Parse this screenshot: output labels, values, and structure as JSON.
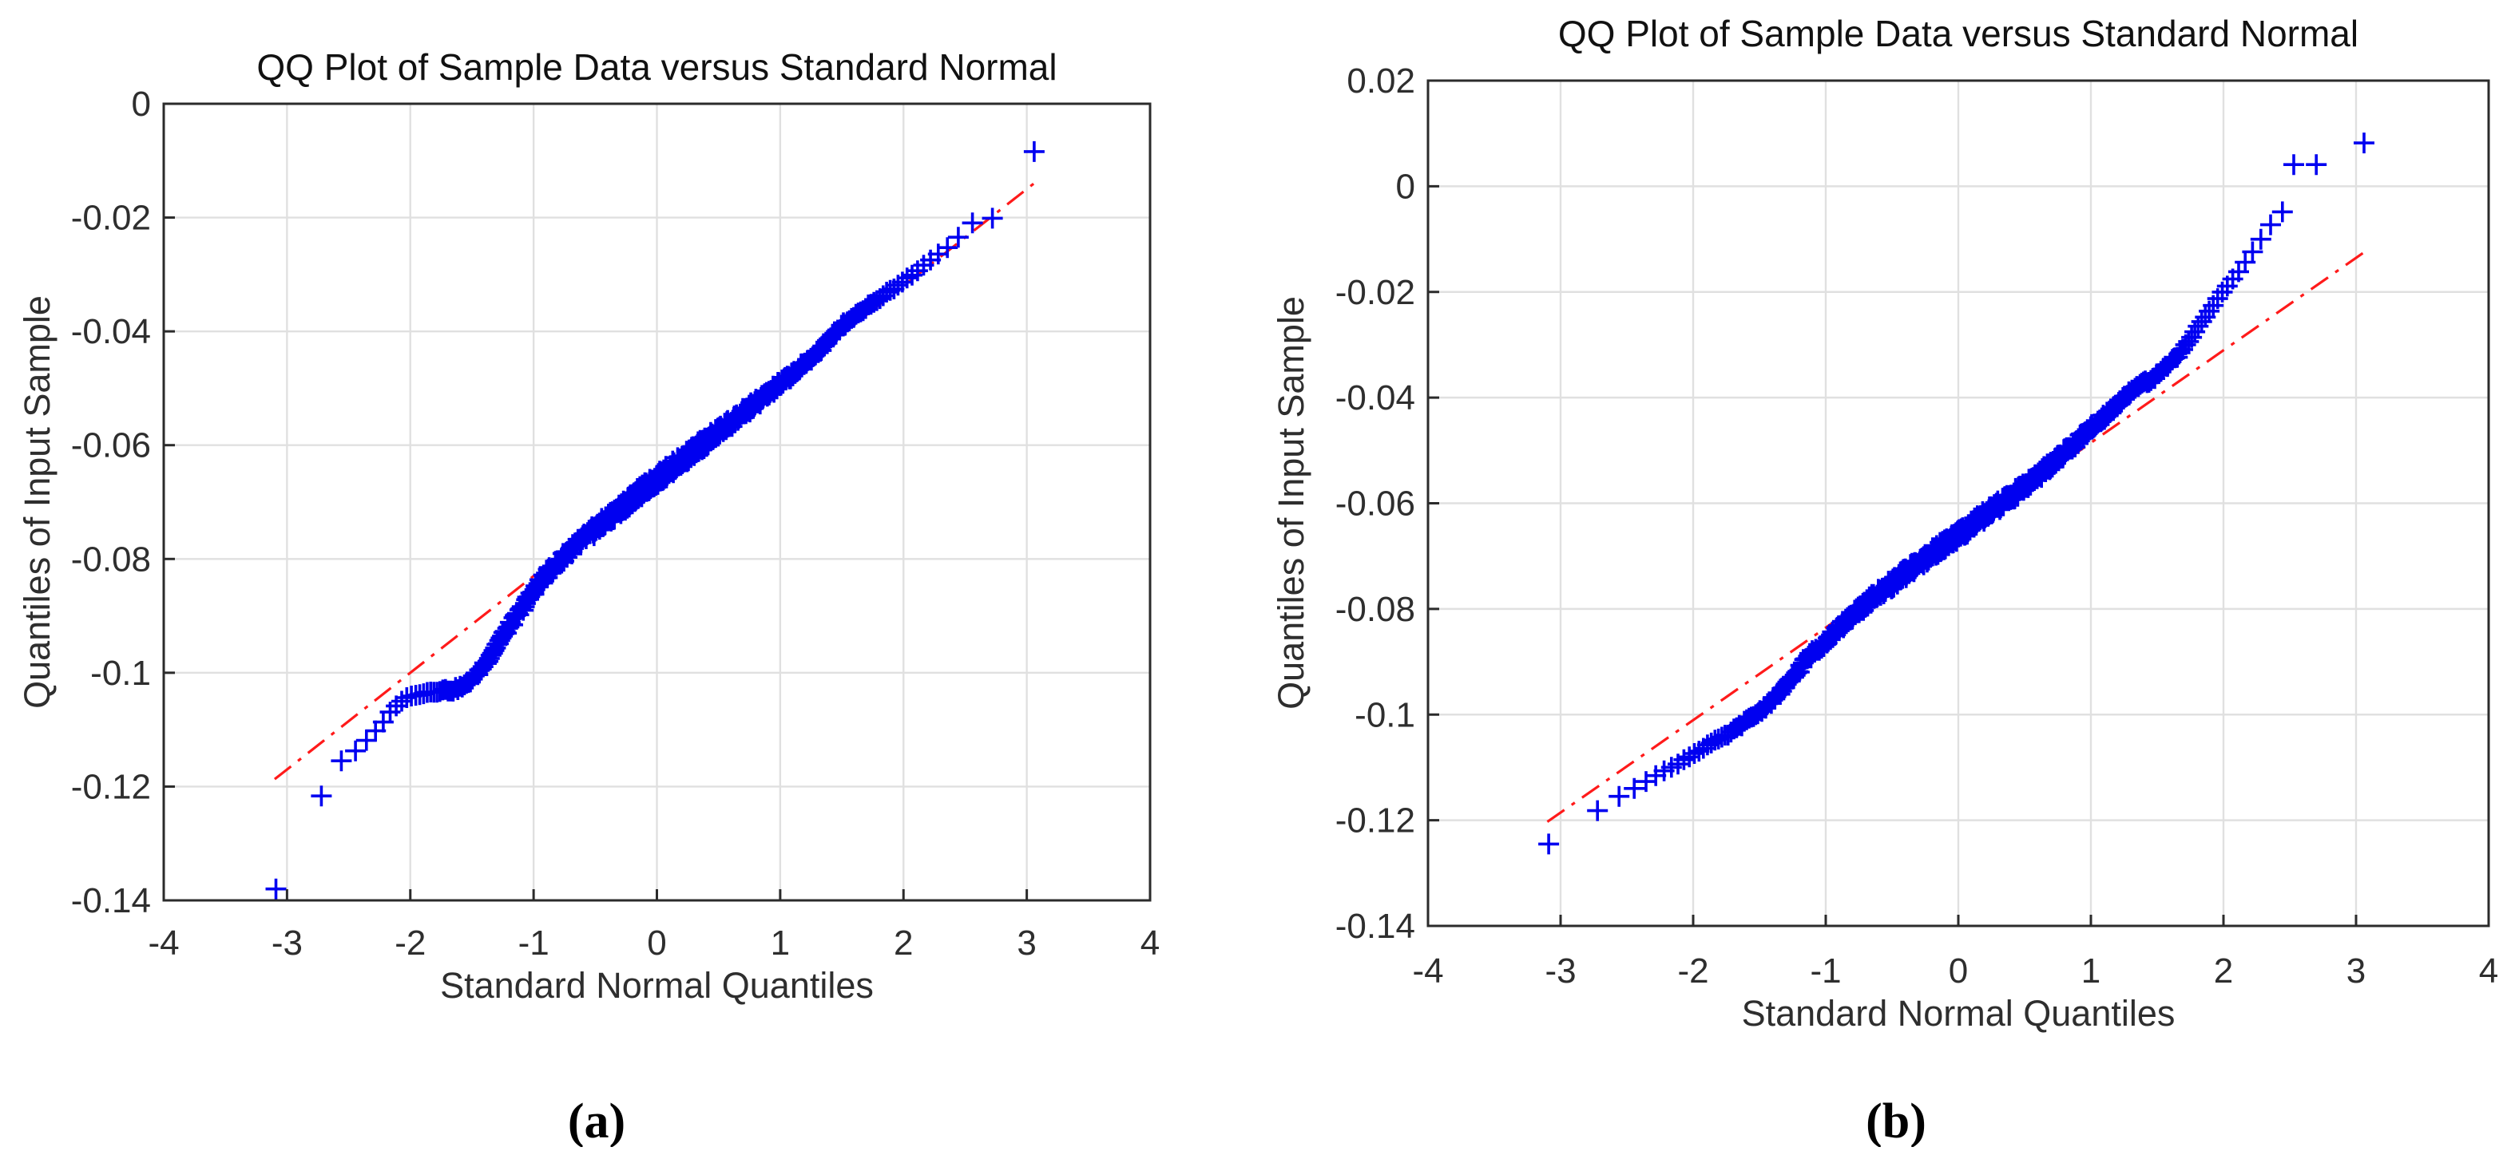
{
  "figure": {
    "panel_labels": [
      "(a)",
      "(b)"
    ],
    "background": "#ffffff",
    "colors": {
      "marker": "#0000f0",
      "ref_line": "#ff1a1a",
      "grid": "#e0e0e0",
      "axis": "#2b2b2b",
      "tick_text": "#2e2e2e",
      "title_text": "#111111"
    }
  },
  "chart_data": [
    {
      "type": "scatter",
      "panel": "a",
      "title": "QQ Plot of Sample Data versus Standard Normal",
      "xlabel": "Standard Normal Quantiles",
      "ylabel": "Quantiles of Input Sample",
      "xlim": [
        -4,
        4
      ],
      "ylim": [
        -0.14,
        0
      ],
      "x_ticks": {
        "values": [
          -4,
          -3,
          -2,
          -1,
          0,
          1,
          2,
          3,
          4
        ],
        "labels": [
          "-4",
          "-3",
          "-2",
          "-1",
          "0",
          "1",
          "2",
          "3",
          "4"
        ]
      },
      "y_ticks": {
        "values": [
          0,
          -0.02,
          -0.04,
          -0.06,
          -0.08,
          -0.1,
          -0.12,
          -0.14
        ],
        "labels": [
          "0",
          "-0.02",
          "-0.04",
          "-0.06",
          "-0.08",
          "-0.1",
          "-0.12",
          "-0.14"
        ]
      },
      "grid": true,
      "legend": false,
      "series": [
        {
          "name": "sample-quantiles",
          "type": "qq-points",
          "marker": "plus",
          "color": "#0000f0",
          "n_points": 500,
          "skip_low": 1,
          "skip_high": 1,
          "band_halfwidth": 0.0011,
          "seed": 3,
          "quantile_curve": [
            [
              -2.74,
              -0.1225
            ],
            [
              -2.6,
              -0.116
            ],
            [
              -2.5,
              -0.1148
            ],
            [
              -2.38,
              -0.1125
            ],
            [
              -2.25,
              -0.1095
            ],
            [
              -2.13,
              -0.106
            ],
            [
              -2.05,
              -0.1046
            ],
            [
              -1.95,
              -0.1038
            ],
            [
              -1.85,
              -0.1034
            ],
            [
              -1.75,
              -0.1031
            ],
            [
              -1.65,
              -0.103
            ],
            [
              -1.55,
              -0.1022
            ],
            [
              -1.45,
              -0.1
            ],
            [
              -1.35,
              -0.097
            ],
            [
              -1.28,
              -0.0945
            ],
            [
              -1.2,
              -0.092
            ],
            [
              -1.1,
              -0.089
            ],
            [
              -1.0,
              -0.0856
            ],
            [
              -0.9,
              -0.0829
            ],
            [
              -0.8,
              -0.0805
            ],
            [
              -0.7,
              -0.0785
            ],
            [
              -0.6,
              -0.0766
            ],
            [
              -0.5,
              -0.0748
            ],
            [
              -0.4,
              -0.073
            ],
            [
              -0.3,
              -0.0712
            ],
            [
              -0.2,
              -0.0694
            ],
            [
              -0.1,
              -0.0677
            ],
            [
              0.0,
              -0.066
            ],
            [
              0.15,
              -0.0635
            ],
            [
              0.3,
              -0.061
            ],
            [
              0.45,
              -0.0585
            ],
            [
              0.6,
              -0.056
            ],
            [
              0.75,
              -0.0535
            ],
            [
              0.9,
              -0.051
            ],
            [
              1.05,
              -0.0484
            ],
            [
              1.2,
              -0.0457
            ],
            [
              1.35,
              -0.0427
            ],
            [
              1.5,
              -0.039
            ],
            [
              1.65,
              -0.0365
            ],
            [
              1.8,
              -0.0342
            ],
            [
              1.95,
              -0.032
            ],
            [
              2.1,
              -0.0295
            ],
            [
              2.25,
              -0.0269
            ],
            [
              2.4,
              -0.0245
            ],
            [
              2.55,
              -0.021
            ],
            [
              2.74,
              -0.02
            ]
          ],
          "outliers_low": [
            [
              -3.09,
              -0.138
            ]
          ],
          "outliers_high": [
            [
              3.06,
              -0.0084
            ]
          ]
        },
        {
          "name": "reference-line",
          "type": "line",
          "style": "dash-dot",
          "color": "#ff1a1a",
          "points": [
            [
              -3.1,
              -0.1187
            ],
            [
              3.07,
              -0.0138
            ]
          ]
        }
      ]
    },
    {
      "type": "scatter",
      "panel": "b",
      "title": "QQ Plot of Sample Data versus Standard Normal",
      "xlabel": "Standard Normal Quantiles",
      "ylabel": "Quantiles of Input Sample",
      "xlim": [
        -4,
        4
      ],
      "ylim": [
        -0.14,
        0.02
      ],
      "x_ticks": {
        "values": [
          -4,
          -3,
          -2,
          -1,
          0,
          1,
          2,
          3,
          4
        ],
        "labels": [
          "-4",
          "-3",
          "-2",
          "-1",
          "0",
          "1",
          "2",
          "3",
          "4"
        ]
      },
      "y_ticks": {
        "values": [
          0.02,
          0,
          -0.02,
          -0.04,
          -0.06,
          -0.08,
          -0.1,
          -0.12,
          -0.14
        ],
        "labels": [
          "0.02",
          "0",
          "-0.02",
          "-0.04",
          "-0.06",
          "-0.08",
          "-0.1",
          "-0.12",
          "-0.14"
        ]
      },
      "grid": true,
      "legend": false,
      "series": [
        {
          "name": "sample-quantiles",
          "type": "qq-points",
          "marker": "plus",
          "color": "#0000f0",
          "n_points": 500,
          "skip_low": 1,
          "skip_high": 3,
          "band_halfwidth": 0.0011,
          "seed": 8,
          "quantile_curve": [
            [
              -2.74,
              -0.1185
            ],
            [
              -2.6,
              -0.116
            ],
            [
              -2.45,
              -0.114
            ],
            [
              -2.3,
              -0.1118
            ],
            [
              -2.15,
              -0.1098
            ],
            [
              -2.0,
              -0.1075
            ],
            [
              -1.88,
              -0.1056
            ],
            [
              -1.75,
              -0.104
            ],
            [
              -1.63,
              -0.1018
            ],
            [
              -1.5,
              -0.0995
            ],
            [
              -1.38,
              -0.0968
            ],
            [
              -1.25,
              -0.0932
            ],
            [
              -1.13,
              -0.089
            ],
            [
              -1.0,
              -0.0862
            ],
            [
              -0.88,
              -0.0832
            ],
            [
              -0.75,
              -0.0802
            ],
            [
              -0.63,
              -0.0776
            ],
            [
              -0.5,
              -0.0752
            ],
            [
              -0.38,
              -0.0728
            ],
            [
              -0.25,
              -0.0705
            ],
            [
              -0.13,
              -0.0683
            ],
            [
              0.0,
              -0.066
            ],
            [
              0.15,
              -0.0633
            ],
            [
              0.3,
              -0.0605
            ],
            [
              0.5,
              -0.0568
            ],
            [
              0.7,
              -0.0528
            ],
            [
              0.9,
              -0.0482
            ],
            [
              1.1,
              -0.0436
            ],
            [
              1.3,
              -0.0388
            ],
            [
              1.5,
              -0.0358
            ],
            [
              1.65,
              -0.0322
            ],
            [
              1.75,
              -0.0288
            ],
            [
              1.87,
              -0.0245
            ],
            [
              1.99,
              -0.02
            ],
            [
              2.1,
              -0.0166
            ],
            [
              2.18,
              -0.0138
            ],
            [
              2.25,
              -0.0112
            ],
            [
              2.32,
              -0.0086
            ],
            [
              2.42,
              -0.0048
            ]
          ],
          "outliers_low": [
            [
              -3.09,
              -0.1245
            ]
          ],
          "outliers_high": [
            [
              2.53,
              0.0041
            ],
            [
              2.7,
              0.0041
            ],
            [
              3.06,
              0.0082
            ]
          ]
        },
        {
          "name": "reference-line",
          "type": "line",
          "style": "dash-dot",
          "color": "#ff1a1a",
          "points": [
            [
              -3.1,
              -0.1203
            ],
            [
              3.1,
              -0.0118
            ]
          ]
        }
      ]
    }
  ]
}
